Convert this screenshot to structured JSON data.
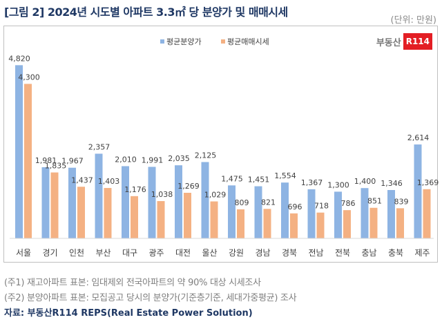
{
  "title": "[그림 2] 2024년 시도별 아파트 3.3㎡ 당 분양가 및 매매시세",
  "unit": "(단위: 만원)",
  "logo": {
    "text": "부동산",
    "box": "R114"
  },
  "notes": [
    "(주1) 재고아파트 표본: 임대제외 전국아파트의 약 90% 대상 시세조사",
    "(주2) 분양아파트 표본: 모집공고 당시의 분양가(기준층기준, 세대가중평균) 조사"
  ],
  "source": "자료: 부동산R114 REPS(Real Estate Power Solution)",
  "chart_data": {
    "type": "bar",
    "title": "",
    "categories": [
      "서울",
      "경기",
      "인천",
      "부산",
      "대구",
      "광주",
      "대전",
      "울산",
      "강원",
      "경남",
      "경북",
      "전남",
      "전북",
      "충남",
      "충북",
      "제주"
    ],
    "series": [
      {
        "name": "평균분양가",
        "color": "#8eb4e3",
        "values": [
          4820,
          1981,
          1967,
          2357,
          2010,
          1991,
          2035,
          2125,
          1475,
          1451,
          1554,
          1367,
          1300,
          1400,
          1346,
          2614
        ]
      },
      {
        "name": "평균매매시세",
        "color": "#f4b183",
        "values": [
          4300,
          1835,
          1437,
          1403,
          1176,
          1038,
          1269,
          1029,
          809,
          821,
          696,
          718,
          786,
          851,
          839,
          1369
        ]
      }
    ],
    "ylim": [
      0,
      5000
    ],
    "grid": false,
    "legend": "top-center",
    "data_labels": true
  }
}
